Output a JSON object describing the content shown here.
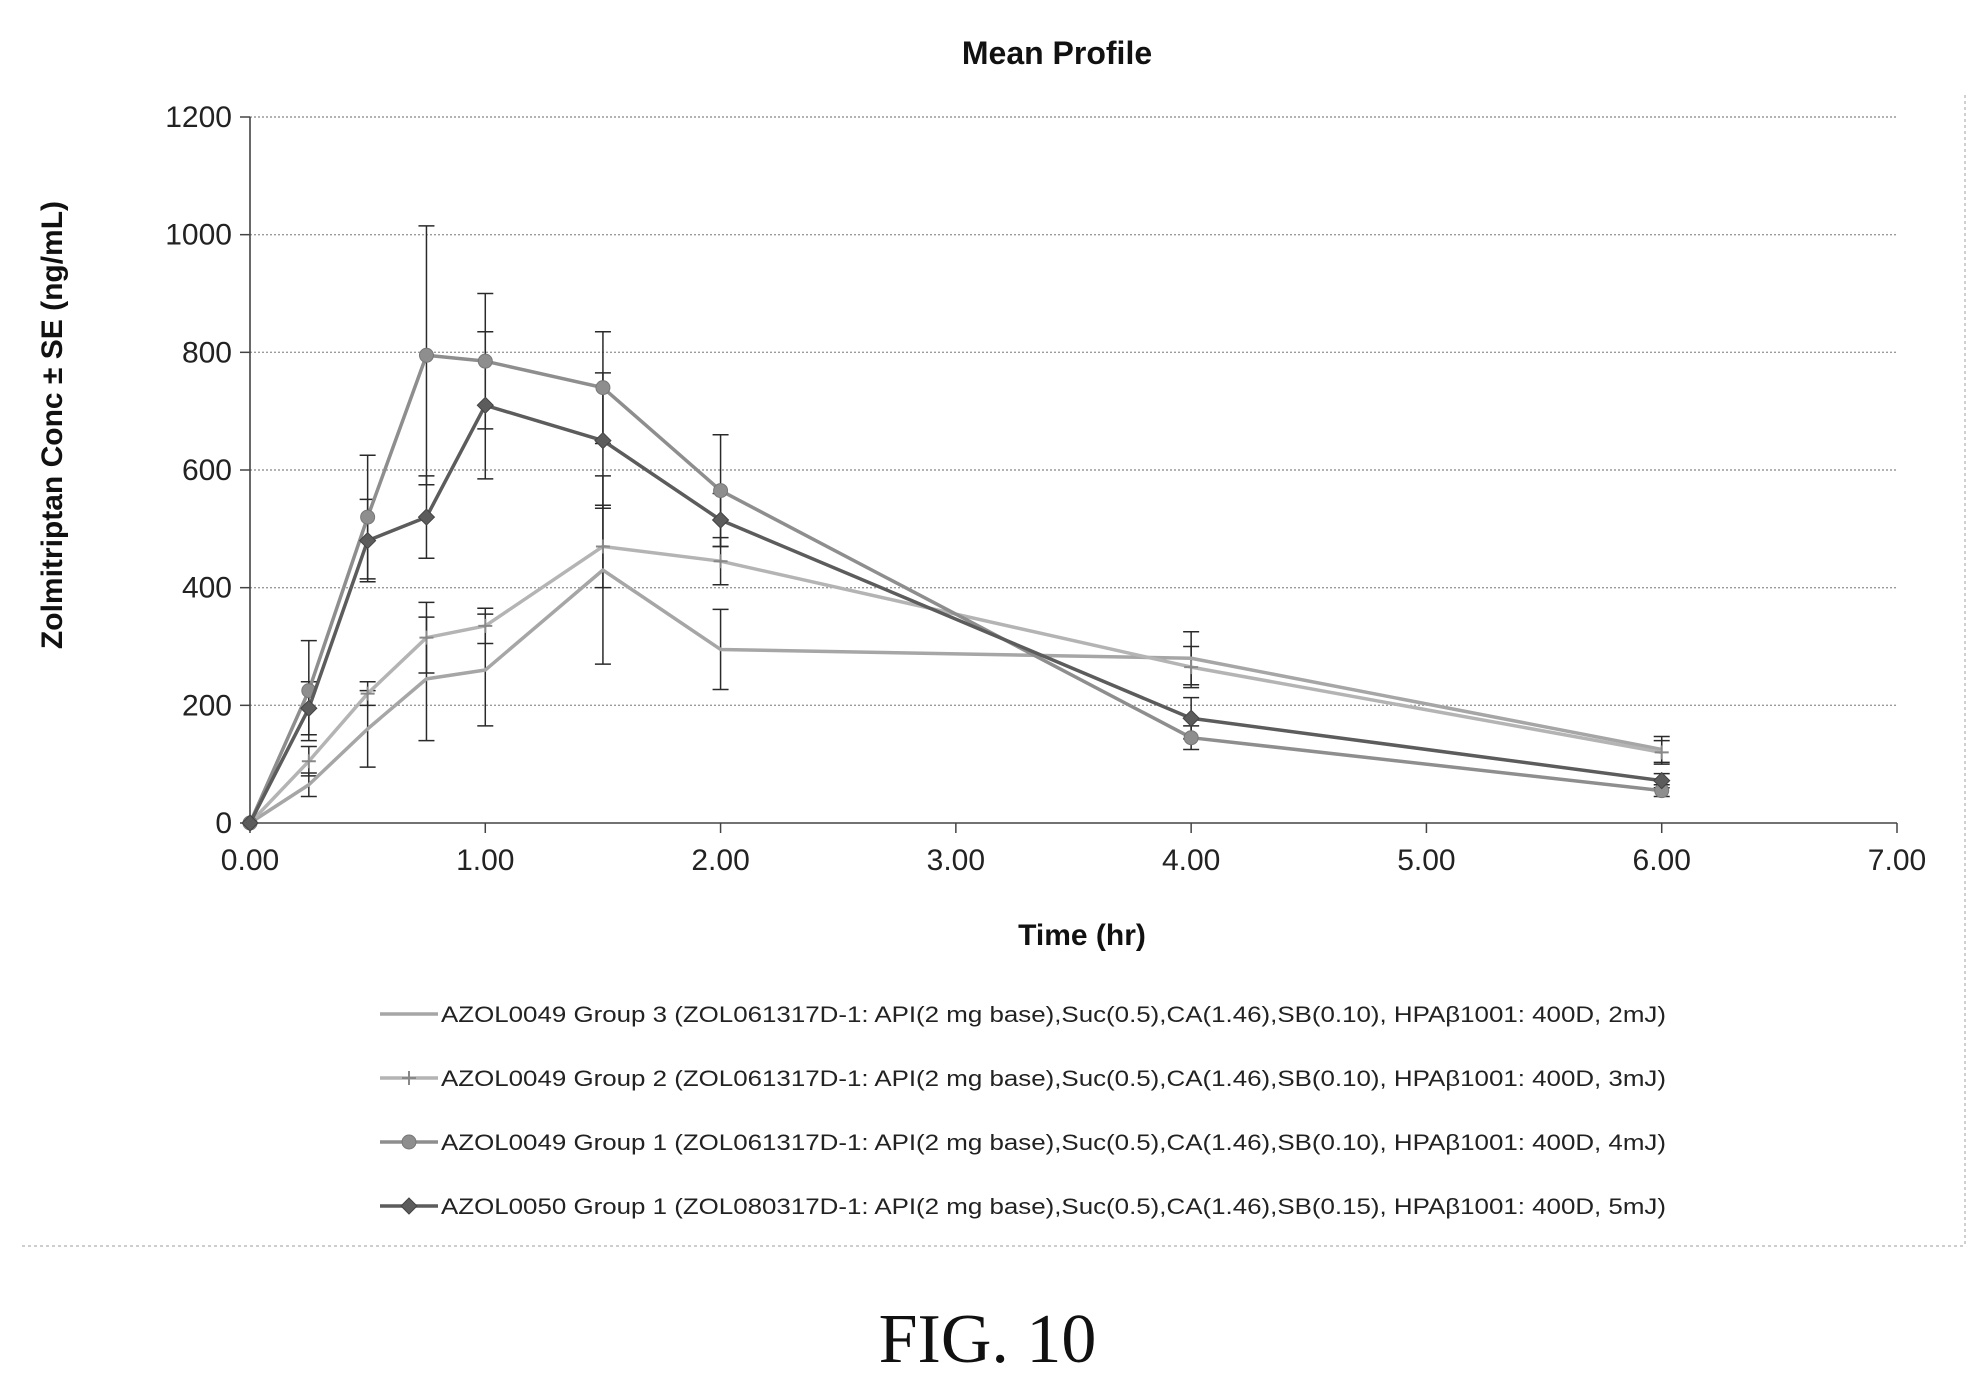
{
  "figure_label": "FIG. 10",
  "chart_data": {
    "type": "line",
    "title": "Mean Profile",
    "xlabel": "Time (hr)",
    "ylabel": "Zolmitriptan Conc ± SE (ng/mL)",
    "xlim": [
      0,
      7
    ],
    "ylim": [
      0,
      1200
    ],
    "xticks": [
      "0.00",
      "1.00",
      "2.00",
      "3.00",
      "4.00",
      "5.00",
      "6.00",
      "7.00"
    ],
    "yticks": [
      "0",
      "200",
      "400",
      "600",
      "800",
      "1000",
      "1200"
    ],
    "grid": true,
    "legend_position": "bottom",
    "series": [
      {
        "name": "AZOL0049 Group 3 (ZOL061317D-1: API(2 mg base),Suc(0.5),CA(1.46),SB(0.10), HPAβ1001: 400D, 2mJ)",
        "color": "#a6a6a6",
        "marker": "none",
        "x": [
          0,
          0.25,
          0.5,
          0.75,
          1.0,
          1.5,
          2.0,
          4.0,
          6.0
        ],
        "y": [
          0,
          65,
          160,
          245,
          260,
          430,
          295,
          280,
          125
        ],
        "err": [
          0,
          20,
          65,
          105,
          95,
          160,
          68,
          45,
          22
        ]
      },
      {
        "name": "AZOL0049 Group 2 (ZOL061317D-1: API(2 mg base),Suc(0.5),CA(1.46),SB(0.10), HPAβ1001: 400D, 3mJ)",
        "color": "#b4b4b4",
        "marker": "plus",
        "x": [
          0,
          0.25,
          0.5,
          0.75,
          1.0,
          1.5,
          2.0,
          4.0,
          6.0
        ],
        "y": [
          0,
          105,
          220,
          315,
          335,
          470,
          445,
          265,
          120
        ],
        "err": [
          0,
          25,
          20,
          60,
          30,
          70,
          40,
          35,
          20
        ]
      },
      {
        "name": "AZOL0049 Group 1 (ZOL061317D-1: API(2 mg base),Suc(0.5),CA(1.46),SB(0.10), HPAβ1001: 400D, 4mJ)",
        "color": "#8e8e8e",
        "marker": "circle",
        "x": [
          0,
          0.25,
          0.5,
          0.75,
          1.0,
          1.5,
          2.0,
          4.0,
          6.0
        ],
        "y": [
          0,
          225,
          520,
          795,
          785,
          740,
          565,
          145,
          55
        ],
        "err": [
          0,
          85,
          105,
          220,
          115,
          95,
          95,
          20,
          10
        ]
      },
      {
        "name": "AZOL0050 Group 1 (ZOL080317D-1: API(2 mg base),Suc(0.5),CA(1.46),SB(0.15), HPAβ1001: 400D, 5mJ)",
        "color": "#5c5c5c",
        "marker": "diamond",
        "x": [
          0,
          0.25,
          0.5,
          0.75,
          1.0,
          1.5,
          2.0,
          4.0,
          6.0
        ],
        "y": [
          0,
          195,
          480,
          520,
          710,
          650,
          515,
          178,
          72
        ],
        "err": [
          0,
          45,
          70,
          70,
          125,
          115,
          45,
          35,
          12
        ]
      }
    ]
  }
}
